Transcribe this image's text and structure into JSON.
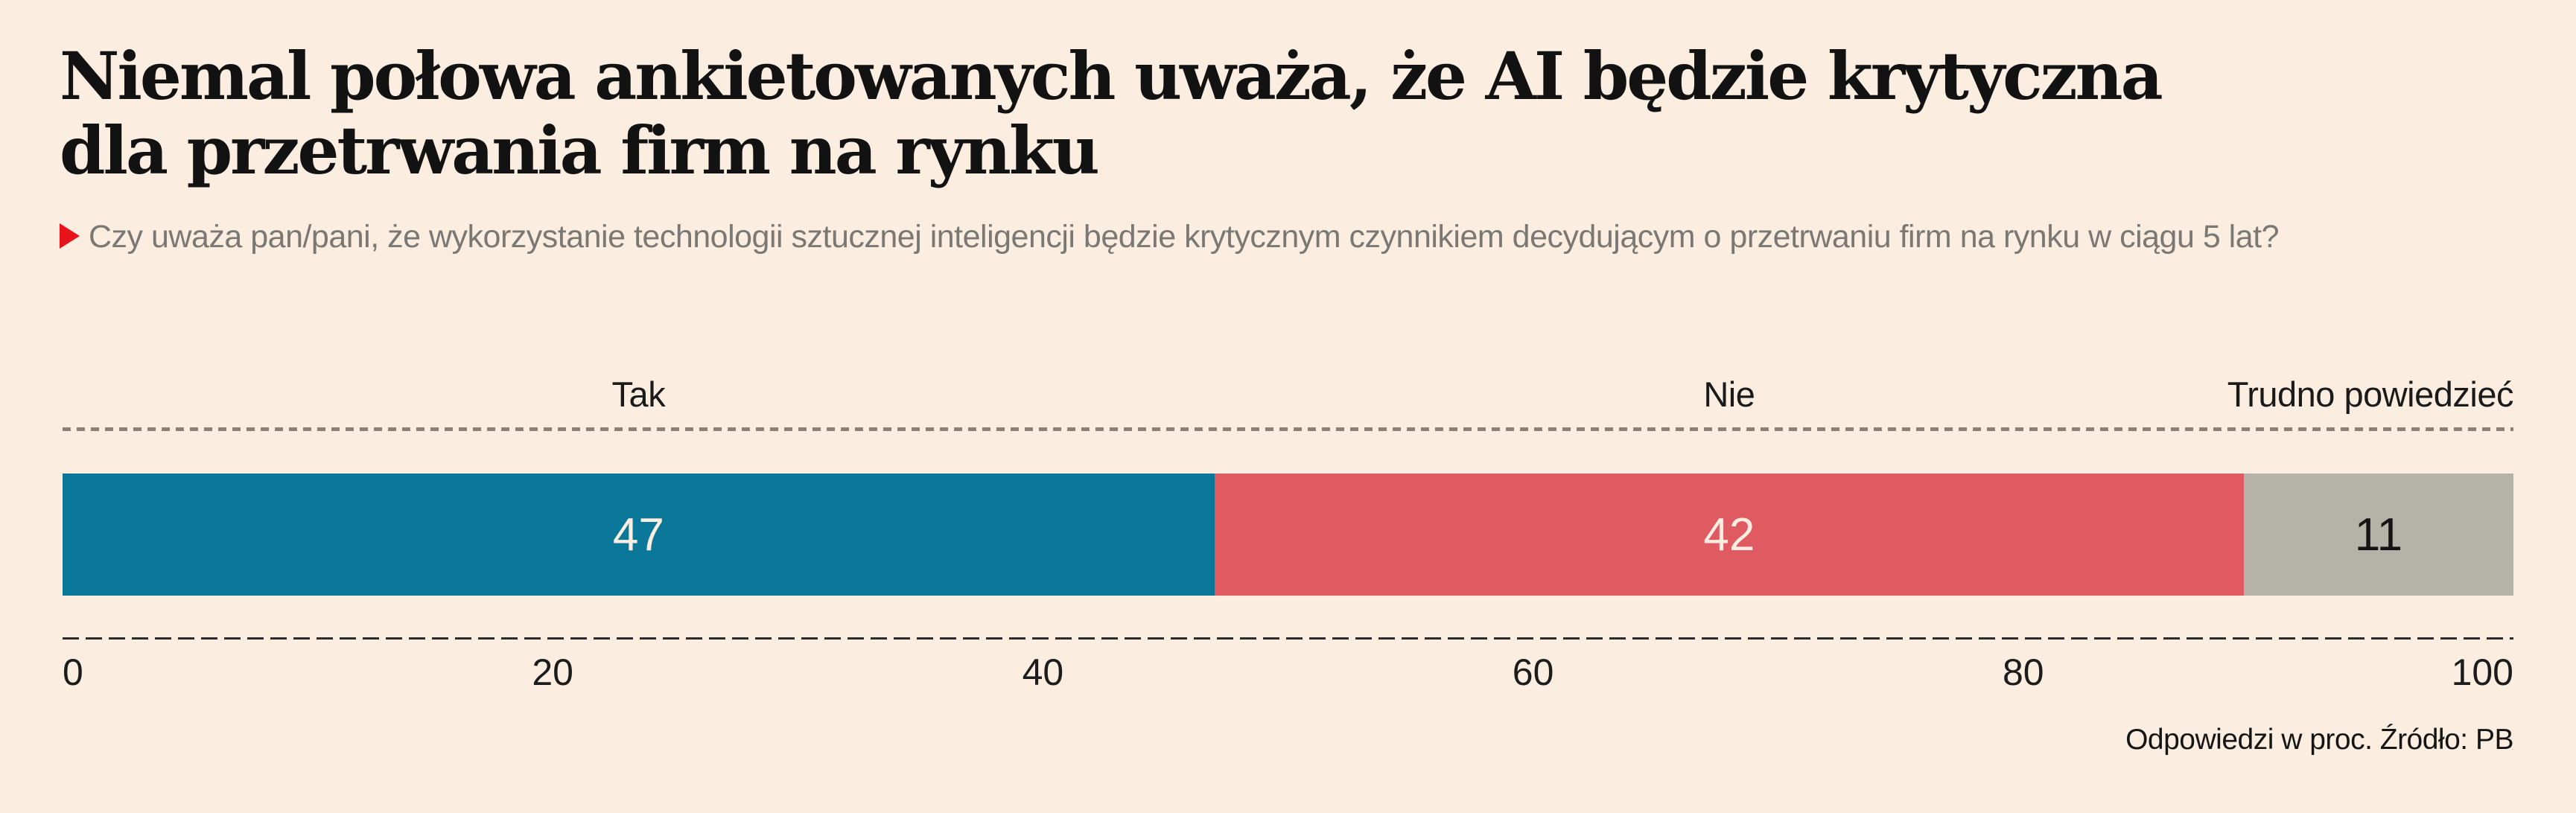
{
  "page": {
    "background": "#fbeee1"
  },
  "header": {
    "title": "Niemal połowa ankietowanych uważa, że AI będzie krytyczna\ndla przetrwania firm na rynku",
    "question": "Czy uważa pan/pani, że wykorzystanie technologii sztucznej inteligencji będzie krytycznym czynnikiem decydującym o przetrwaniu firm na rynku w ciągu 5 lat?",
    "question_marker_color": "#e8121a"
  },
  "chart_data": {
    "type": "bar",
    "stacked": true,
    "orientation": "horizontal",
    "title": "Niemal połowa ankietowanych uważa, że AI będzie krytyczna dla przetrwania firm na rynku",
    "categories": [
      "Tak",
      "Nie",
      "Trudno powiedzieć"
    ],
    "values": [
      47,
      42,
      11
    ],
    "unit": "proc.",
    "xlim": [
      0,
      100
    ],
    "x_ticks": [
      0,
      20,
      40,
      60,
      80,
      100
    ],
    "segment_colors": [
      "#0c7899",
      "#e05a62",
      "#b5b2a7"
    ],
    "value_label_colors": [
      "#fbeee1",
      "#fbeee1",
      "#141414"
    ],
    "category_align": [
      "center",
      "center",
      "right"
    ],
    "gridline_style": "dashed",
    "legend_position": "above-bar"
  },
  "footer": {
    "source": "Odpowiedzi w proc. Źródło: PB"
  }
}
